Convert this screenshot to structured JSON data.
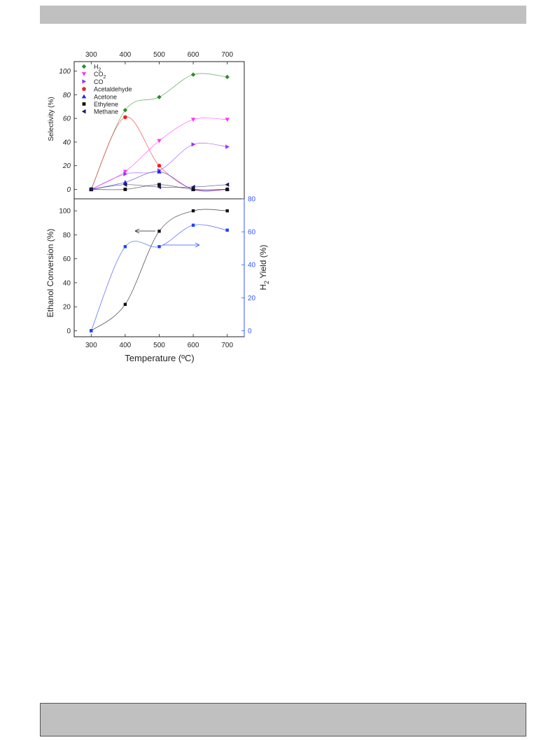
{
  "chart_data": [
    {
      "type": "line",
      "ylabel": "Selectivity (%)",
      "ylim": [
        -8,
        108
      ],
      "xlim": [
        250,
        750
      ],
      "x_ticks_top": [
        "300",
        "400",
        "500",
        "600",
        "700"
      ],
      "y_ticks": [
        "0",
        "20",
        "40",
        "60",
        "80",
        "100"
      ],
      "legend_position": "top-left",
      "x": [
        300,
        400,
        500,
        600,
        700
      ],
      "series": [
        {
          "name": "H",
          "name_sub": "2",
          "color": "#2e8b2e",
          "marker": "diamond",
          "values": [
            0,
            67,
            78,
            97,
            95
          ]
        },
        {
          "name": "CO",
          "name_sub": "2",
          "color": "#ff33ff",
          "marker": "tri-down",
          "values": [
            0,
            15,
            41,
            59,
            59
          ]
        },
        {
          "name": "CO",
          "color": "#9933ff",
          "marker": "tri-right",
          "values": [
            0,
            13,
            16,
            38,
            36
          ]
        },
        {
          "name": "Acetaldehyde",
          "color": "#ee2222",
          "marker": "circle",
          "values": [
            0,
            61,
            20,
            0,
            0
          ]
        },
        {
          "name": "Acetone",
          "color": "#2222ee",
          "marker": "tri-up",
          "values": [
            0,
            6,
            15,
            0,
            0
          ]
        },
        {
          "name": "Ethylene",
          "color": "#111111",
          "marker": "square",
          "values": [
            0,
            0,
            4,
            0,
            0
          ]
        },
        {
          "name": "Methane",
          "color": "#1a1a66",
          "marker": "tri-left",
          "values": [
            0,
            4,
            2,
            2,
            4
          ]
        }
      ]
    },
    {
      "type": "line",
      "xlabel": "Temperature (ºC)",
      "ylabel_left": "Ethanol Conversion (%)",
      "ylabel_right": "H",
      "ylabel_right_sub": "2",
      "ylabel_right_suffix": " Yield (%)",
      "xlim": [
        250,
        750
      ],
      "ylim_left": [
        -5,
        110
      ],
      "ylim_right": [
        -3.64,
        80
      ],
      "x_ticks": [
        "300",
        "400",
        "500",
        "600",
        "700"
      ],
      "y_ticks_left": [
        "0",
        "20",
        "40",
        "60",
        "80",
        "100"
      ],
      "y_ticks_right": [
        "0",
        "20",
        "40",
        "60",
        "80"
      ],
      "x": [
        300,
        400,
        500,
        600,
        700
      ],
      "series": [
        {
          "axis": "left",
          "color": "#111111",
          "values": [
            0,
            22,
            83,
            100,
            100
          ]
        },
        {
          "axis": "right",
          "color": "#1f3fff",
          "values": [
            0,
            51,
            51,
            64,
            61
          ]
        }
      ]
    }
  ]
}
